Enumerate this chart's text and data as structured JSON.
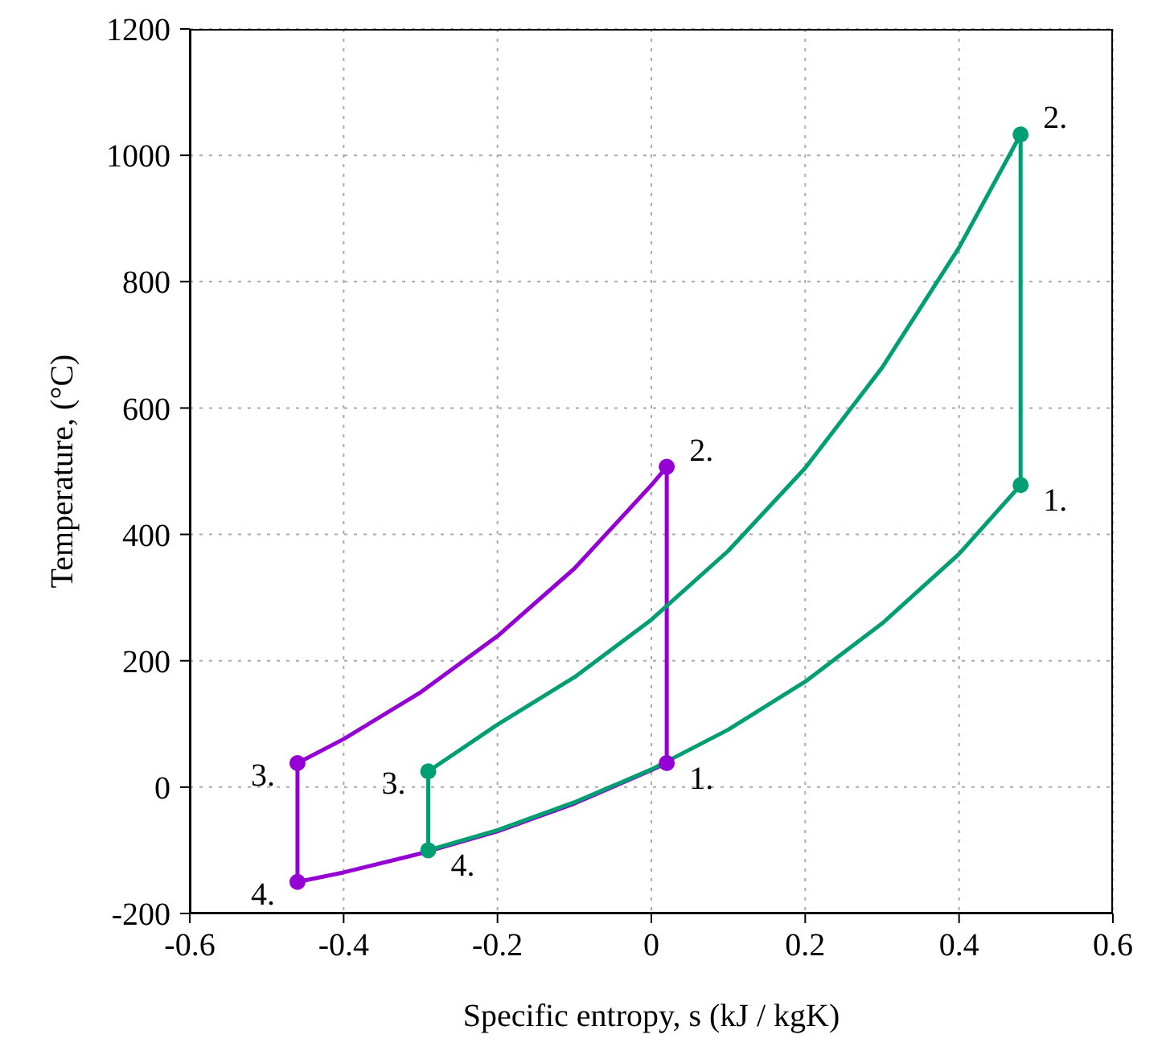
{
  "chart_data": {
    "type": "line",
    "xlabel": "Specific entropy, s (kJ / kgK)",
    "ylabel": "Temperature, (°C)",
    "xlim": [
      -0.6,
      0.6
    ],
    "xticks": [
      -0.6,
      -0.4,
      -0.2,
      0,
      0.2,
      0.4,
      0.6
    ],
    "ylim": [
      -200,
      1200
    ],
    "yticks": [
      -200,
      0,
      200,
      400,
      600,
      800,
      1000,
      1200
    ],
    "grid": true,
    "line_style": "solid",
    "series": [
      {
        "color": "#9400d3",
        "marker": "none",
        "x": [
          -0.46,
          -0.4,
          -0.3,
          -0.2,
          -0.1,
          0,
          0.02,
          0.02
        ],
        "values": [
          38,
          76,
          150,
          239,
          346,
          478,
          507,
          38
        ]
      },
      {
        "color": "#9400d3",
        "marker": "none",
        "x": [
          -0.46,
          -0.46,
          -0.4,
          -0.3,
          -0.2,
          -0.1,
          0,
          0.02
        ],
        "values": [
          38,
          -150,
          -135,
          -105,
          -70,
          -26,
          27,
          38
        ]
      },
      {
        "type": "scatter",
        "marker": "circle",
        "color": "#9400d3",
        "x": [
          -0.46,
          0.02,
          0.02,
          -0.46
        ],
        "values": [
          38,
          507,
          38,
          -150
        ]
      },
      {
        "color": "#009e73",
        "marker": "none",
        "x": [
          -0.29,
          -0.2,
          -0.1,
          0,
          0.1,
          0.2,
          0.3,
          0.4,
          0.48,
          0.48
        ],
        "values": [
          25,
          99,
          174,
          265,
          374,
          505,
          664,
          854,
          1033,
          478
        ]
      },
      {
        "color": "#009e73",
        "marker": "none",
        "x": [
          -0.29,
          -0.29,
          -0.2,
          -0.1,
          0,
          0.1,
          0.2,
          0.3,
          0.4,
          0.48
        ],
        "values": [
          25,
          -100,
          -68,
          -24,
          28,
          91,
          167,
          259,
          369,
          478
        ]
      },
      {
        "type": "scatter",
        "marker": "circle",
        "color": "#009e73",
        "x": [
          -0.29,
          0.48,
          0.48,
          -0.29
        ],
        "values": [
          25,
          1033,
          478,
          -100
        ]
      }
    ],
    "annotations": [
      {
        "text": "3.",
        "x": -0.46,
        "y": 38
      },
      {
        "text": "2.",
        "x": 0.02,
        "y": 507
      },
      {
        "text": "1.",
        "x": 0.02,
        "y": 38
      },
      {
        "text": "4.",
        "x": -0.46,
        "y": -150
      },
      {
        "text": "3.",
        "x": -0.29,
        "y": 25
      },
      {
        "text": "2.",
        "x": 0.48,
        "y": 1033
      },
      {
        "text": "1.",
        "x": 0.48,
        "y": 478
      },
      {
        "text": "4.",
        "x": -0.29,
        "y": -100
      }
    ]
  }
}
